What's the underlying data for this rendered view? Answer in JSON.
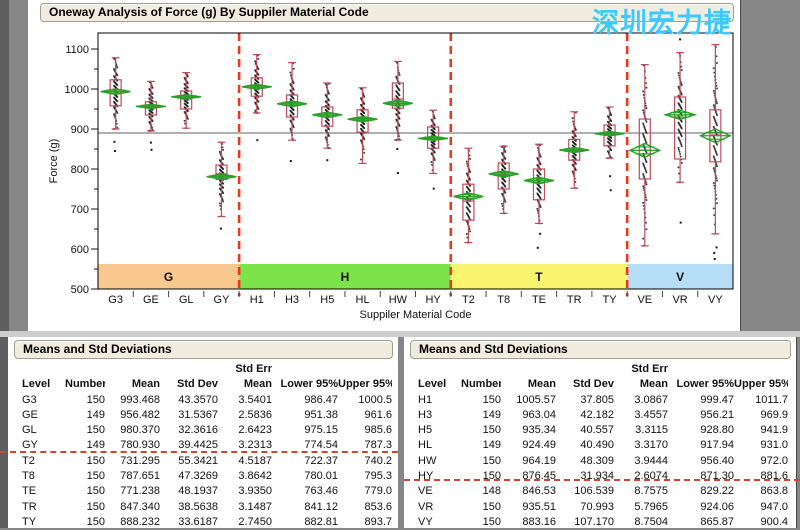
{
  "window": {
    "background": "#868686"
  },
  "oneway": {
    "title": "Oneway Analysis of Force (g) By Suppiler Material Code"
  },
  "watermark": {
    "text": "深圳宏力捷",
    "color": "#3fc8fa"
  },
  "chart_data": {
    "type": "box",
    "title": "Oneway Analysis of Force (g) By Suppiler Material Code",
    "xlabel": "Suppiler Material Code",
    "ylabel": "Force (g)",
    "ylim": [
      500,
      1140
    ],
    "yticks": [
      500,
      600,
      700,
      800,
      900,
      1000,
      1100
    ],
    "ref_line": 890,
    "grid": false,
    "legend": "none",
    "colors": {
      "box": "#bf4a5c",
      "diamond": "#2aa02a",
      "dashed": "#e8391e",
      "ref": "#606060",
      "dots": "#1a1a1a"
    },
    "groups": [
      {
        "label": "G",
        "color": "#f9c88e",
        "from": 0,
        "to": 4
      },
      {
        "label": "H",
        "color": "#7ce34a",
        "from": 4,
        "to": 10
      },
      {
        "label": "T",
        "color": "#faf46f",
        "from": 10,
        "to": 15
      },
      {
        "label": "V",
        "color": "#b5ddf5",
        "from": 15,
        "to": 18
      }
    ],
    "levels": [
      {
        "level": "G3",
        "n": 150,
        "mean": 993.468,
        "std": 43.357,
        "ci": [
          986.47,
          1000.5
        ],
        "box": [
          958,
          1023
        ],
        "median": 988,
        "whiskers": [
          900,
          1078
        ],
        "outliers": [
          868,
          845
        ]
      },
      {
        "level": "GE",
        "n": 149,
        "mean": 956.482,
        "std": 31.5367,
        "ci": [
          951.38,
          961.6
        ],
        "box": [
          935,
          968
        ],
        "median": 952,
        "whiskers": [
          895,
          1019
        ],
        "outliers": [
          866,
          848
        ]
      },
      {
        "level": "GL",
        "n": 150,
        "mean": 980.37,
        "std": 32.3616,
        "ci": [
          975.15,
          985.6
        ],
        "box": [
          950,
          995
        ],
        "median": 975,
        "whiskers": [
          902,
          1041
        ],
        "outliers": []
      },
      {
        "level": "GY",
        "n": 149,
        "mean": 780.93,
        "std": 39.4425,
        "ci": [
          774.54,
          787.3
        ],
        "box": [
          774,
          810
        ],
        "median": 788,
        "whiskers": [
          681,
          867
        ],
        "outliers": [
          651
        ]
      },
      {
        "level": "H1",
        "n": 150,
        "mean": 1005.57,
        "std": 37.805,
        "ci": [
          999.47,
          1011.7
        ],
        "box": [
          982,
          1028
        ],
        "median": 1005,
        "whiskers": [
          940,
          1086
        ],
        "outliers": [
          872
        ]
      },
      {
        "level": "H3",
        "n": 149,
        "mean": 963.04,
        "std": 42.182,
        "ci": [
          956.21,
          969.9
        ],
        "box": [
          930,
          985
        ],
        "median": 958,
        "whiskers": [
          872,
          1066
        ],
        "outliers": [
          820
        ]
      },
      {
        "level": "H5",
        "n": 150,
        "mean": 935.34,
        "std": 40.557,
        "ci": [
          928.8,
          941.9
        ],
        "box": [
          907,
          955
        ],
        "median": 930,
        "whiskers": [
          852,
          1015
        ],
        "outliers": [
          822
        ]
      },
      {
        "level": "HL",
        "n": 149,
        "mean": 924.49,
        "std": 40.49,
        "ci": [
          917.94,
          931.0
        ],
        "box": [
          892,
          948
        ],
        "median": 920,
        "whiskers": [
          814,
          1003
        ],
        "outliers": []
      },
      {
        "level": "HW",
        "n": 150,
        "mean": 964.19,
        "std": 48.309,
        "ci": [
          956.4,
          972.0
        ],
        "box": [
          952,
          1015
        ],
        "median": 975,
        "whiskers": [
          872,
          1069
        ],
        "outliers": [
          850,
          790
        ]
      },
      {
        "level": "HY",
        "n": 150,
        "mean": 876.45,
        "std": 31.934,
        "ci": [
          871.3,
          881.6
        ],
        "box": [
          852,
          905
        ],
        "median": 875,
        "whiskers": [
          789,
          947
        ],
        "outliers": [
          751
        ]
      },
      {
        "level": "T2",
        "n": 150,
        "mean": 731.295,
        "std": 55.3421,
        "ci": [
          722.37,
          740.2
        ],
        "box": [
          672,
          762
        ],
        "median": 720,
        "whiskers": [
          616,
          852
        ],
        "outliers": []
      },
      {
        "level": "T8",
        "n": 150,
        "mean": 787.651,
        "std": 47.3269,
        "ci": [
          780.01,
          795.3
        ],
        "box": [
          750,
          815
        ],
        "median": 785,
        "whiskers": [
          689,
          857
        ],
        "outliers": []
      },
      {
        "level": "TE",
        "n": 150,
        "mean": 771.238,
        "std": 48.1937,
        "ci": [
          763.46,
          779.0
        ],
        "box": [
          723,
          800
        ],
        "median": 765,
        "whiskers": [
          664,
          862
        ],
        "outliers": [
          638,
          603
        ]
      },
      {
        "level": "TR",
        "n": 150,
        "mean": 847.34,
        "std": 38.5638,
        "ci": [
          841.12,
          853.6
        ],
        "box": [
          822,
          874
        ],
        "median": 845,
        "whiskers": [
          752,
          943
        ],
        "outliers": []
      },
      {
        "level": "TY",
        "n": 150,
        "mean": 888.232,
        "std": 33.6187,
        "ci": [
          882.81,
          893.7
        ],
        "box": [
          858,
          910
        ],
        "median": 888,
        "whiskers": [
          827,
          955
        ],
        "outliers": [
          782,
          747
        ]
      },
      {
        "level": "VE",
        "n": 148,
        "mean": 846.53,
        "std": 106.539,
        "ci": [
          829.22,
          863.8
        ],
        "box": [
          775,
          925
        ],
        "median": 847,
        "whiskers": [
          608,
          1061
        ],
        "outliers": []
      },
      {
        "level": "VR",
        "n": 150,
        "mean": 935.51,
        "std": 70.993,
        "ci": [
          924.06,
          947.0
        ],
        "box": [
          825,
          980
        ],
        "median": 930,
        "whiskers": [
          767,
          1091
        ],
        "outliers": [
          1124,
          666
        ]
      },
      {
        "level": "VY",
        "n": 150,
        "mean": 883.16,
        "std": 107.17,
        "ci": [
          865.87,
          900.4
        ],
        "box": [
          818,
          948
        ],
        "median": 885,
        "whiskers": [
          638,
          1111
        ],
        "outliers": [
          604,
          590,
          575
        ]
      }
    ]
  },
  "tables": {
    "left": {
      "title": "Means and Std Deviations",
      "header_top": [
        "",
        "",
        "",
        "",
        "Std Err",
        "",
        ""
      ],
      "columns": [
        "Level",
        "Number",
        "Mean",
        "Std Dev",
        "Mean",
        "Lower 95%",
        "Upper 95%"
      ],
      "rows": [
        [
          "G3",
          "150",
          "993.468",
          "43.3570",
          "3.5401",
          "986.47",
          "1000.5"
        ],
        [
          "GE",
          "149",
          "956.482",
          "31.5367",
          "2.5836",
          "951.38",
          "961.6"
        ],
        [
          "GL",
          "150",
          "980.370",
          "32.3616",
          "2.6423",
          "975.15",
          "985.6"
        ],
        [
          "GY",
          "149",
          "780.930",
          "39.4425",
          "3.2313",
          "774.54",
          "787.3"
        ],
        [
          "T2",
          "150",
          "731.295",
          "55.3421",
          "4.5187",
          "722.37",
          "740.2"
        ],
        [
          "T8",
          "150",
          "787.651",
          "47.3269",
          "3.8642",
          "780.01",
          "795.3"
        ],
        [
          "TE",
          "150",
          "771.238",
          "48.1937",
          "3.9350",
          "763.46",
          "779.0"
        ],
        [
          "TR",
          "150",
          "847.340",
          "38.5638",
          "3.1487",
          "841.12",
          "853.6"
        ],
        [
          "TY",
          "150",
          "888.232",
          "33.6187",
          "2.7450",
          "882.81",
          "893.7"
        ]
      ],
      "divider_after_index": 3
    },
    "right": {
      "title": "Means and Std Deviations",
      "header_top": [
        "",
        "",
        "",
        "",
        "Std Err",
        "",
        ""
      ],
      "columns": [
        "Level",
        "Number",
        "Mean",
        "Std Dev",
        "Mean",
        "Lower 95%",
        "Upper 95%"
      ],
      "rows": [
        [
          "H1",
          "150",
          "1005.57",
          "37.805",
          "3.0867",
          "999.47",
          "1011.7"
        ],
        [
          "H3",
          "149",
          "963.04",
          "42.182",
          "3.4557",
          "956.21",
          "969.9"
        ],
        [
          "H5",
          "150",
          "935.34",
          "40.557",
          "3.3115",
          "928.80",
          "941.9"
        ],
        [
          "HL",
          "149",
          "924.49",
          "40.490",
          "3.3170",
          "917.94",
          "931.0"
        ],
        [
          "HW",
          "150",
          "964.19",
          "48.309",
          "3.9444",
          "956.40",
          "972.0"
        ],
        [
          "HY",
          "150",
          "876.45",
          "31.934",
          "2.6074",
          "871.30",
          "881.6"
        ],
        [
          "VE",
          "148",
          "846.53",
          "106.539",
          "8.7575",
          "829.22",
          "863.8"
        ],
        [
          "VR",
          "150",
          "935.51",
          "70.993",
          "5.7965",
          "924.06",
          "947.0"
        ],
        [
          "VY",
          "150",
          "883.16",
          "107.170",
          "8.7504",
          "865.87",
          "900.4"
        ]
      ],
      "divider_after_index": 5
    }
  }
}
